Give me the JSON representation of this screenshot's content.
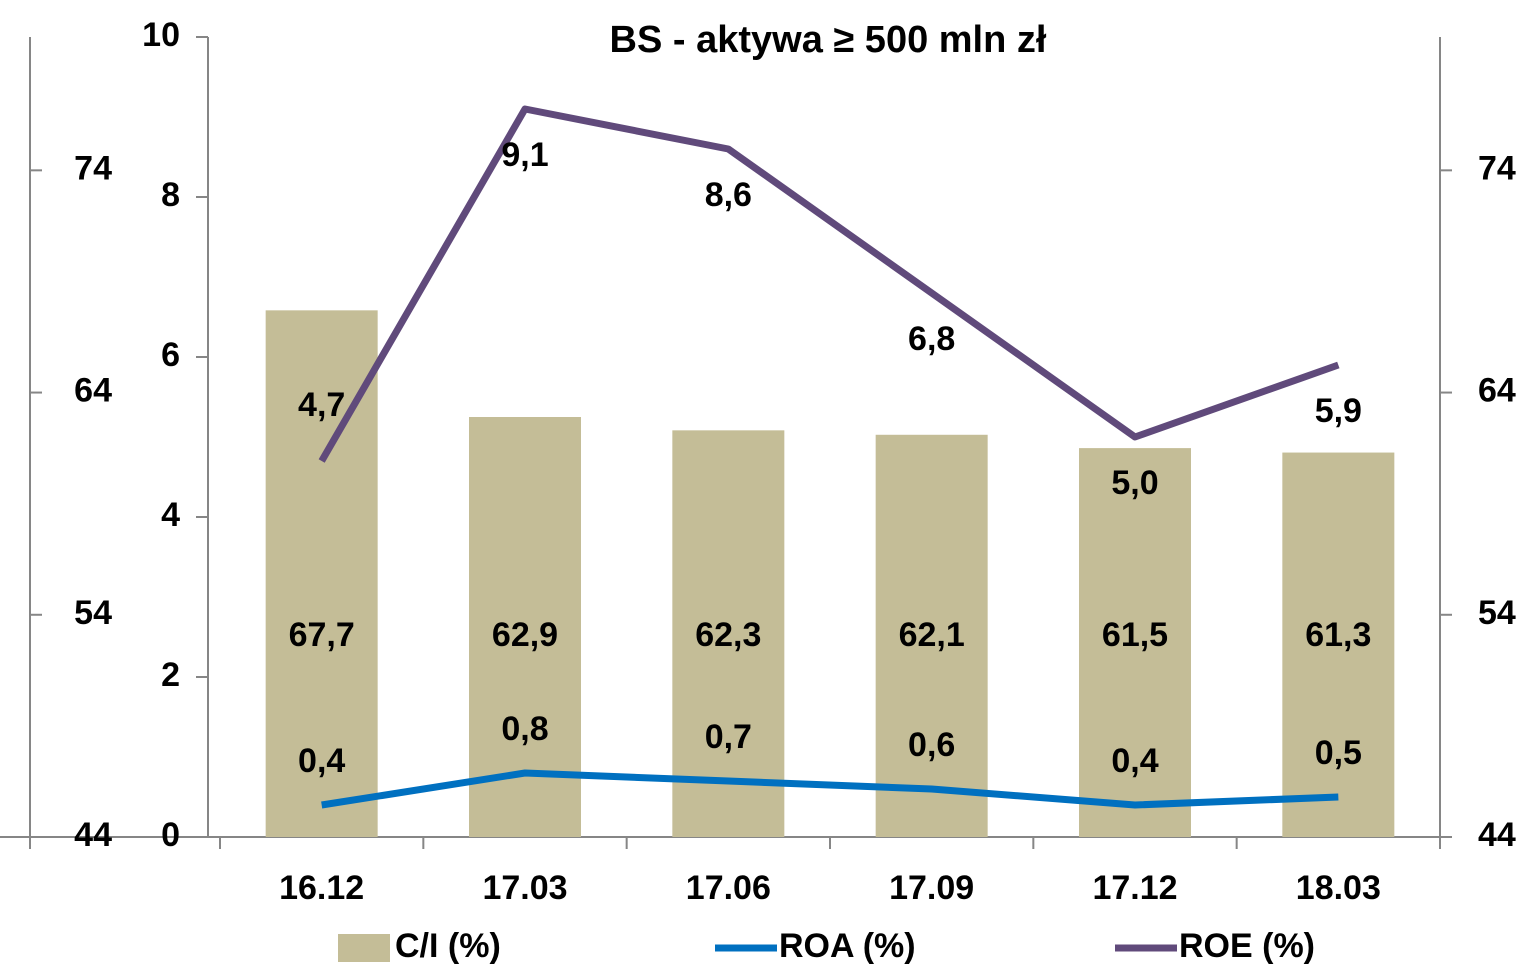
{
  "chart_data": {
    "type": "bar",
    "title": "BS - aktywa ≥ 500 mln zł",
    "categories": [
      "16.12",
      "17.03",
      "17.06",
      "17.09",
      "17.12",
      "18.03"
    ],
    "ylim": [
      0,
      10
    ],
    "yticks": [
      0,
      2,
      4,
      6,
      8,
      10
    ],
    "y2lim": [
      44,
      80
    ],
    "y2ticks": [
      44,
      54,
      64,
      74
    ],
    "legend": "bottom",
    "series": [
      {
        "name": "C/I (%)",
        "type": "bar",
        "axis": "y2",
        "color": "#c4bd97",
        "values": [
          67.7,
          62.9,
          62.3,
          62.1,
          61.5,
          61.3
        ],
        "value_labels": [
          "67,7",
          "62,9",
          "62,3",
          "62,1",
          "61,5",
          "61,3"
        ]
      },
      {
        "name": "ROA (%)",
        "type": "line",
        "axis": "y",
        "color": "#0070c0",
        "values": [
          0.4,
          0.8,
          0.7,
          0.6,
          0.4,
          0.5
        ],
        "value_labels": [
          "0,4",
          "0,8",
          "0,7",
          "0,6",
          "0,4",
          "0,5"
        ]
      },
      {
        "name": "ROE (%)",
        "type": "line",
        "axis": "y",
        "color": "#604a7b",
        "values": [
          4.7,
          9.1,
          8.6,
          6.8,
          5.0,
          5.9
        ],
        "value_labels": [
          "4,7",
          "9,1",
          "8,6",
          "6,8",
          "5,0",
          "5,9"
        ]
      }
    ]
  }
}
